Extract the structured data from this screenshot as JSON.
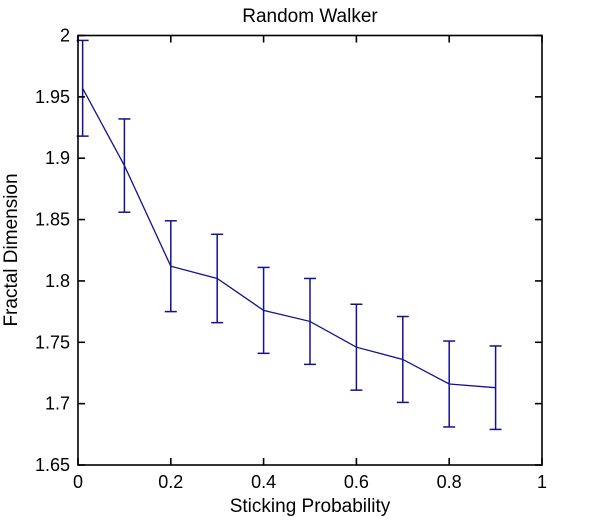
{
  "figure": {
    "background": "#ffffff"
  },
  "chart_data": {
    "type": "line",
    "title": "Random Walker",
    "xlabel": "Sticking Probability",
    "ylabel": "Fractal Dimension",
    "error_bars": true,
    "x": [
      0.01,
      0.1,
      0.2,
      0.3,
      0.4,
      0.5,
      0.6,
      0.7,
      0.8,
      0.9
    ],
    "y": [
      1.957,
      1.894,
      1.812,
      1.802,
      1.776,
      1.767,
      1.746,
      1.736,
      1.716,
      1.713
    ],
    "yerr": [
      0.039,
      0.038,
      0.037,
      0.036,
      0.035,
      0.035,
      0.035,
      0.035,
      0.035,
      0.034
    ],
    "xlim": [
      0,
      1
    ],
    "ylim": [
      1.65,
      2
    ],
    "xticks": [
      0,
      0.2,
      0.4,
      0.6,
      0.8,
      1
    ],
    "xtick_labels": [
      "0",
      "0.2",
      "0.4",
      "0.6",
      "0.8",
      "1"
    ],
    "yticks": [
      1.65,
      1.7,
      1.75,
      1.8,
      1.85,
      1.9,
      1.95,
      2
    ],
    "ytick_labels": [
      "1.65",
      "1.7",
      "1.75",
      "1.8",
      "1.85",
      "1.9",
      "1.95",
      "2"
    ],
    "grid": false,
    "legend": "none",
    "line_color": "#12128F",
    "axis_color": "#000000",
    "box": true
  }
}
